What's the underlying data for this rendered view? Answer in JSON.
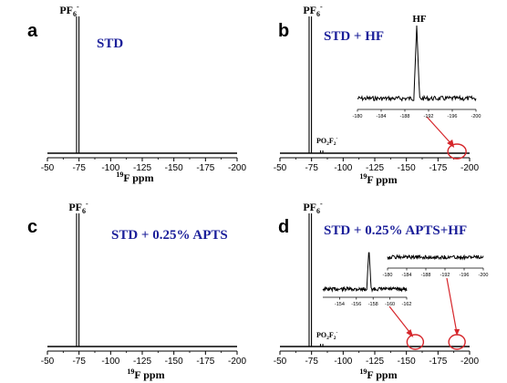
{
  "chart_data": [
    {
      "panel_letter": "a",
      "type": "line",
      "title": "STD",
      "xlabel_sup": "19",
      "xlabel": "F ppm",
      "xlim": [
        -50,
        -200
      ],
      "x_ticks": [
        "-50",
        "-75",
        "-100",
        "-125",
        "-150",
        "-175",
        "-200"
      ],
      "peaks": [
        {
          "name": "PF6-",
          "label_main": "PF",
          "label_sub": "6",
          "label_sup": "-",
          "x": -74,
          "height": 1.0,
          "doublet": true
        }
      ]
    },
    {
      "panel_letter": "b",
      "type": "line",
      "title": "STD + HF",
      "xlabel_sup": "19",
      "xlabel": "F ppm",
      "xlim": [
        -50,
        -200
      ],
      "x_ticks": [
        "-50",
        "-75",
        "-100",
        "-125",
        "-150",
        "-175",
        "-200"
      ],
      "peaks": [
        {
          "name": "PF6-",
          "label_main": "PF",
          "label_sub": "6",
          "label_sup": "-",
          "x": -74,
          "height": 1.0,
          "doublet": true
        },
        {
          "name": "PO2F2-",
          "label_main": "PO",
          "label_sub": "2",
          "label_main2": "F",
          "label_sub2": "2",
          "label_sup": "-",
          "x": -83,
          "height": 0.02,
          "doublet": true
        }
      ],
      "circle_x": -190,
      "inset": {
        "label": "HF",
        "xlim": [
          -180,
          -200
        ],
        "x_ticks": [
          "-180",
          "-184",
          "-188",
          "-192",
          "-196",
          "-200"
        ],
        "peak_x": -190,
        "height": 1.0
      }
    },
    {
      "panel_letter": "c",
      "type": "line",
      "title": "STD + 0.25% APTS",
      "xlabel_sup": "19",
      "xlabel": "F ppm",
      "xlim": [
        -50,
        -200
      ],
      "x_ticks": [
        "-50",
        "-75",
        "-100",
        "-125",
        "-150",
        "-175",
        "-200"
      ],
      "peaks": [
        {
          "name": "PF6-",
          "label_main": "PF",
          "label_sub": "6",
          "label_sup": "-",
          "x": -74,
          "height": 1.0,
          "doublet": true
        }
      ]
    },
    {
      "panel_letter": "d",
      "type": "line",
      "title": "STD + 0.25% APTS+HF",
      "xlabel_sup": "19",
      "xlabel": "F ppm",
      "xlim": [
        -50,
        -200
      ],
      "x_ticks": [
        "-50",
        "-75",
        "-100",
        "-125",
        "-150",
        "-175",
        "-200"
      ],
      "peaks": [
        {
          "name": "PF6-",
          "label_main": "PF",
          "label_sub": "6",
          "label_sup": "-",
          "x": -74,
          "height": 1.0,
          "doublet": true
        },
        {
          "name": "PO2F2-",
          "label_main": "PO",
          "label_sub": "2",
          "label_main2": "F",
          "label_sub2": "2",
          "label_sup": "-",
          "x": -83,
          "height": 0.02,
          "doublet": true
        }
      ],
      "circles_x": [
        -157,
        -190
      ],
      "insets": [
        {
          "xlim": [
            -152,
            -162
          ],
          "x_ticks": [
            "-154",
            "-156",
            "-158",
            "-160",
            "-162"
          ],
          "peak_x": -157.5,
          "height": 1.0
        },
        {
          "xlim": [
            -180,
            -200
          ],
          "x_ticks": [
            "-180",
            "-184",
            "-188",
            "-192",
            "-196",
            "-200"
          ],
          "peak_x": null,
          "height": 0
        }
      ]
    }
  ],
  "colors": {
    "title": "#1b1f9a",
    "annotation": "#d6262b",
    "line": "#000000",
    "text": "#000000"
  }
}
